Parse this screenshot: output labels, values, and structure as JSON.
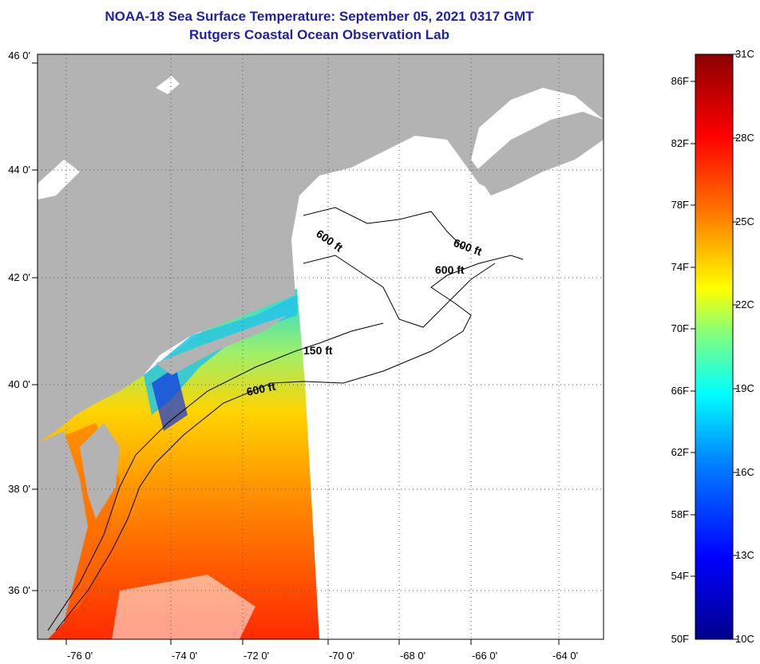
{
  "header": {
    "title": "NOAA-18 Sea Surface Temperature:  September 05, 2021 0317 GMT",
    "subtitle": "Rutgers Coastal Ocean Observation Lab"
  },
  "map": {
    "lat_labels": [
      "46 0'",
      "44 0'",
      "42 0'",
      "40 0'",
      "38 0'",
      "36 0'"
    ],
    "lon_labels": [
      "-76 0'",
      "-74 0'",
      "-72 0'",
      "-70 0'",
      "-68 0'",
      "-66 0'",
      "-64 0'"
    ],
    "lat_range": [
      35,
      46
    ],
    "lon_range": [
      -77,
      -63.5
    ],
    "contour_labels": [
      "600 ft",
      "600 ft",
      "600 ft",
      "150 ft",
      "600 ft"
    ],
    "colors": {
      "land": "#b3b3b3",
      "no_data": "#ffffff",
      "grid": "#555555"
    }
  },
  "colorbar": {
    "fahrenheit_labels": [
      "86F",
      "82F",
      "78F",
      "74F",
      "70F",
      "66F",
      "62F",
      "58F",
      "54F",
      "50F"
    ],
    "celsius_labels": [
      "31C",
      "28C",
      "25C",
      "22C",
      "19C",
      "16C",
      "13C",
      "10C"
    ],
    "range_f": [
      50,
      88
    ],
    "range_c": [
      10,
      31
    ],
    "colors": [
      "#00008b",
      "#0000ff",
      "#0080ff",
      "#00ffff",
      "#80ff80",
      "#ffff00",
      "#ff8000",
      "#ff0000",
      "#8b0000"
    ]
  }
}
